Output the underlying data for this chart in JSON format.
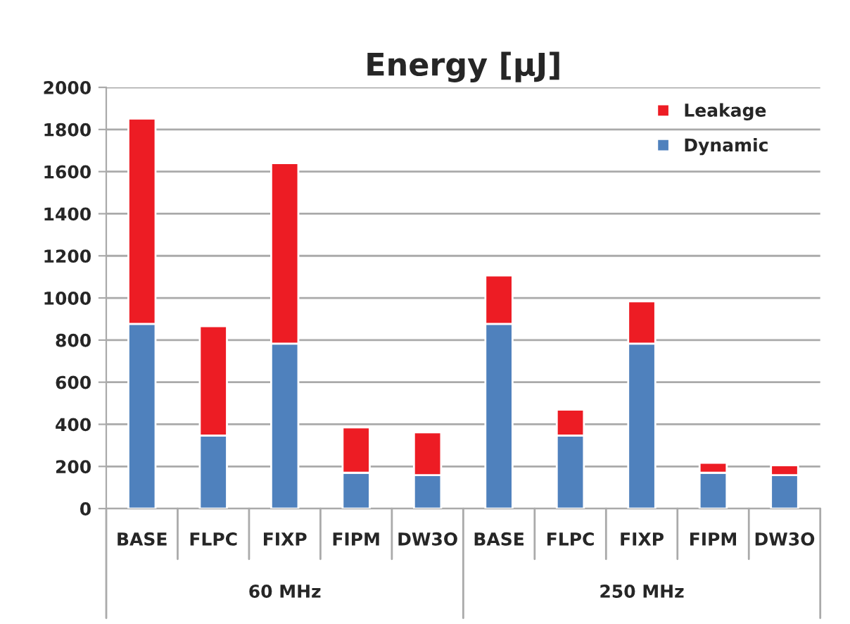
{
  "chart_data": {
    "type": "bar",
    "title": "Energy [μJ]",
    "stacked": true,
    "categories": [
      "BASE",
      "FLPC",
      "FIXP",
      "FIPM",
      "DW3O",
      "BASE",
      "FLPC",
      "FIXP",
      "FIPM",
      "DW3O"
    ],
    "series": [
      {
        "name": "Dynamic",
        "color": "#4f81bd",
        "values": [
          877,
          347,
          783,
          170,
          159,
          877,
          347,
          783,
          170,
          159
        ]
      },
      {
        "name": "Leakage",
        "color": "#ed1c24",
        "values": [
          975,
          519,
          857,
          215,
          203,
          230,
          123,
          201,
          47,
          47
        ]
      }
    ],
    "ylim": [
      0,
      2000
    ],
    "yticks": [
      0,
      200,
      400,
      600,
      800,
      1000,
      1200,
      1400,
      1600,
      1800,
      2000
    ],
    "grid": "y",
    "legend": "top right",
    "annotations": [
      "60 MHz",
      "250 MHz"
    ]
  }
}
